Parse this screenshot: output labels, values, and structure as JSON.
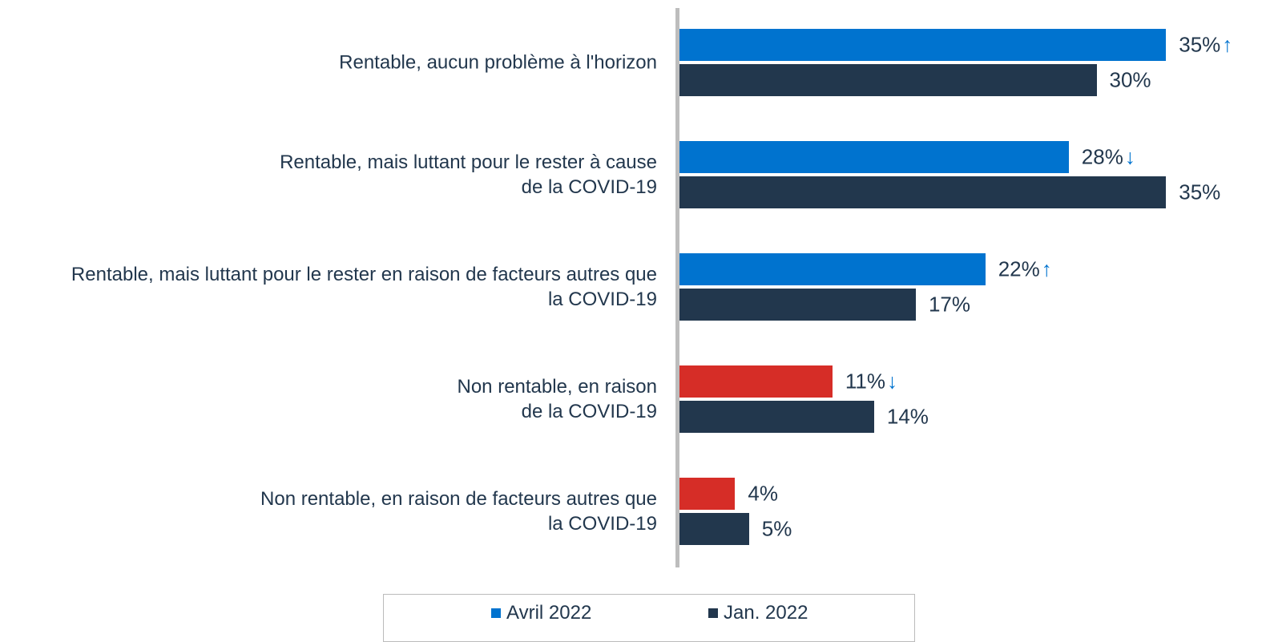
{
  "chart_data": {
    "type": "hbar",
    "categories": [
      "Rentable, aucun problème à l'horizon",
      "Rentable, mais luttant pour le rester à cause\nde la COVID-19",
      "Rentable, mais luttant pour le rester en raison de facteurs autres que\nla COVID-19",
      "Non rentable, en raison\nde la COVID-19",
      "Non rentable, en raison de facteurs autres que\nla COVID-19"
    ],
    "series": [
      {
        "name": "Avril 2022",
        "color": "#0073cf",
        "colors": [
          "#0073cf",
          "#0073cf",
          "#0073cf",
          "#d62d27",
          "#d62d27"
        ],
        "values": [
          35,
          28,
          22,
          11,
          4
        ],
        "value_labels": [
          "35%",
          "28%",
          "22%",
          "11%",
          "4%"
        ],
        "arrows": [
          "↑",
          "↓",
          "↑",
          "↓",
          null
        ]
      },
      {
        "name": "Jan. 2022",
        "color": "#22374d",
        "values": [
          30,
          35,
          17,
          14,
          5
        ],
        "value_labels": [
          "30%",
          "35%",
          "17%",
          "14%",
          "5%"
        ]
      }
    ],
    "xlim": [
      0,
      40
    ],
    "arrow_color": "#0073cf"
  }
}
